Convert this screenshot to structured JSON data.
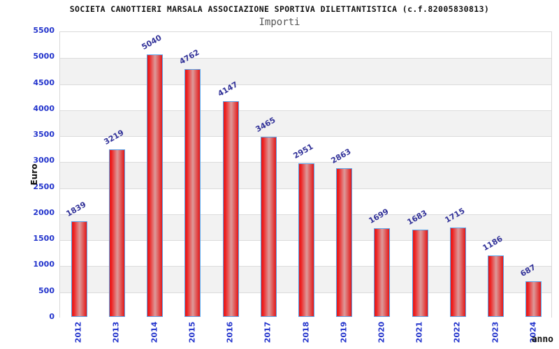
{
  "header": {
    "title": "SOCIETA CANOTTIERI MARSALA ASSOCIAZIONE SPORTIVA DILETTANTISTICA (c.f.82005830813)",
    "subtitle": "Importi"
  },
  "chart_data": {
    "type": "bar",
    "title": "Importi",
    "categories": [
      "2012",
      "2013",
      "2014",
      "2015",
      "2016",
      "2017",
      "2018",
      "2019",
      "2020",
      "2021",
      "2022",
      "2023",
      "2024"
    ],
    "values": [
      1839,
      3219,
      5040,
      4762,
      4147,
      3465,
      2951,
      2863,
      1699,
      1683,
      1715,
      1186,
      687
    ],
    "xlabel": "anno",
    "ylabel": "Euro",
    "ylim": [
      0,
      5500
    ],
    "ytick_step": 500,
    "grid": true,
    "legend_position": "none",
    "value_labels_rotated": true
  },
  "colors": {
    "title": "#111111",
    "subtitle": "#555555",
    "bar_fill_edge": "#e31717",
    "bar_fill_bright": "#ee2020",
    "bar_fill_center": "#dd9a9a",
    "bar_border": "#58a2e8",
    "value_label": "#333399",
    "tick_label": "#2233cc",
    "axis_title": "#111111",
    "band_alt": "#f2f2f2",
    "band_main": "#ffffff",
    "gridline": "#dcdcdc"
  }
}
